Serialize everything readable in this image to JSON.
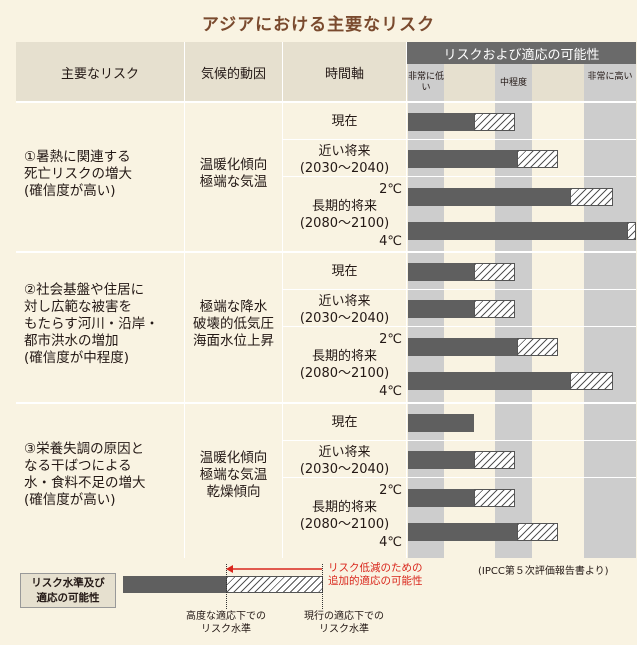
{
  "title": "アジアにおける主要なリスク",
  "headers": {
    "risk": "主要なリスク",
    "climate": "気候的動因",
    "time": "時間軸",
    "adaptation": "リスクおよび適応の可能性"
  },
  "levels": {
    "very_low": "非常に低い",
    "medium": "中程度",
    "very_high": "非常に高い"
  },
  "groups": [
    {
      "risk_lines": [
        "①暑熱に関連する",
        "死亡リスクの増大",
        "(確信度が高い)"
      ],
      "driver_lines": [
        "温暖化傾向",
        "極端な気温"
      ],
      "timeframes": {
        "present": "現在",
        "near": "近い将来",
        "near_years": "(2030〜2040)",
        "long": "長期的将来",
        "long_years": "(2080〜2100)",
        "temp_low": "2℃",
        "temp_high": "4℃"
      },
      "bars": [
        {
          "level_fraction": 0.29,
          "potential_fraction": 0.47
        },
        {
          "level_fraction": 0.48,
          "potential_fraction": 0.66
        },
        {
          "level_fraction": 0.71,
          "potential_fraction": 0.9
        },
        {
          "level_fraction": 0.96,
          "potential_fraction": 1.0
        }
      ]
    },
    {
      "risk_lines": [
        "②社会基盤や住居に",
        "対し広範な被害を",
        "もたらす河川・沿岸・",
        "都市洪水の増加",
        "(確信度が中程度)"
      ],
      "driver_lines": [
        "極端な降水",
        "破壊的低気圧",
        "海面水位上昇"
      ],
      "timeframes": {
        "present": "現在",
        "near": "近い将来",
        "near_years": "(2030〜2040)",
        "long": "長期的将来",
        "long_years": "(2080〜2100)",
        "temp_low": "2℃",
        "temp_high": "4℃"
      },
      "bars": [
        {
          "level_fraction": 0.29,
          "potential_fraction": 0.47
        },
        {
          "level_fraction": 0.29,
          "potential_fraction": 0.47
        },
        {
          "level_fraction": 0.48,
          "potential_fraction": 0.66
        },
        {
          "level_fraction": 0.71,
          "potential_fraction": 0.9
        }
      ]
    },
    {
      "risk_lines": [
        "③栄養失調の原因と",
        "なる干ばつによる",
        "水・食料不足の増大",
        "(確信度が高い)"
      ],
      "driver_lines": [
        "温暖化傾向",
        "極端な気温",
        "乾燥傾向"
      ],
      "timeframes": {
        "present": "現在",
        "near": "近い将来",
        "near_years": "(2030〜2040)",
        "long": "長期的将来",
        "long_years": "(2080〜2100)",
        "temp_low": "2℃",
        "temp_high": "4℃"
      },
      "bars": [
        {
          "level_fraction": 0.29,
          "potential_fraction": 0.29
        },
        {
          "level_fraction": 0.29,
          "potential_fraction": 0.47
        },
        {
          "level_fraction": 0.29,
          "potential_fraction": 0.47
        },
        {
          "level_fraction": 0.48,
          "potential_fraction": 0.66
        }
      ]
    }
  ],
  "source": "(IPCC第５次評価報告書より)",
  "legend": {
    "box_lines": [
      "リスク水準及び",
      "適応の可能性"
    ],
    "red_note_lines": [
      "リスク低減のための",
      "追加的適応の可能性"
    ],
    "high_adapt_lines": [
      "高度な適応下での",
      "リスク水準"
    ],
    "current_adapt_lines": [
      "現行の適応下での",
      "リスク水準"
    ]
  },
  "colors": {
    "title": "#7a4a2e",
    "background": "#f9f3e2",
    "header": "#e6e0cf",
    "header_dark": "#6a6a6a",
    "bar": "#5f5f5f",
    "arrow": "#d9261c"
  }
}
